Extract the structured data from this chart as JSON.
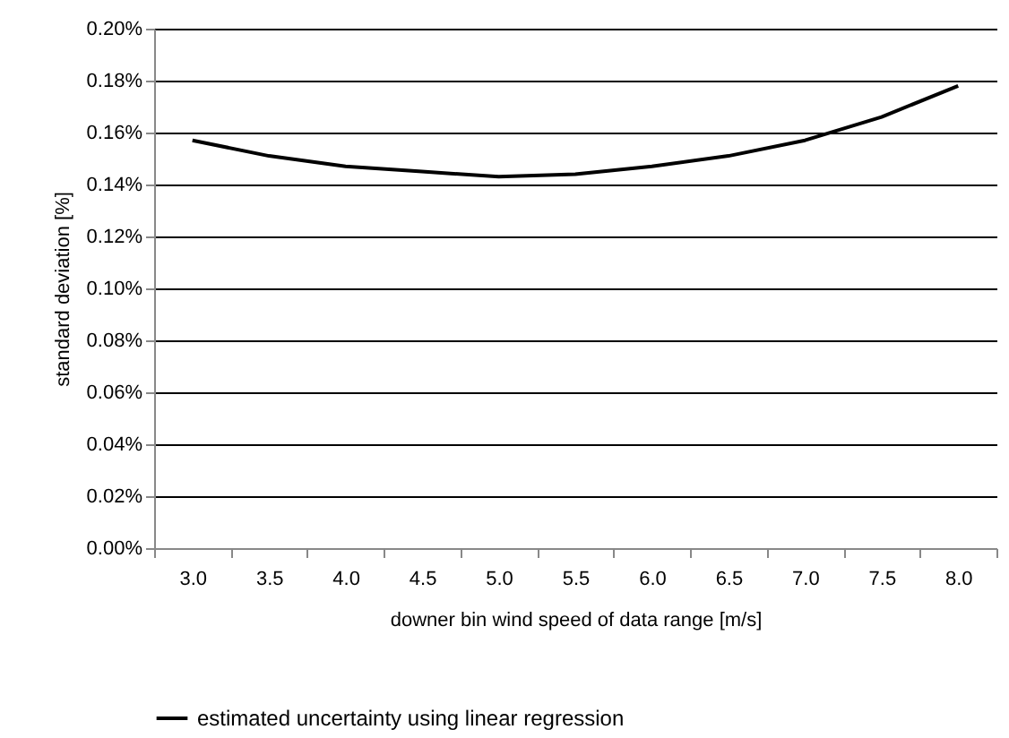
{
  "chart_data": {
    "type": "line",
    "xlabel": "downer bin wind speed of data range [m/s]",
    "ylabel": "standard deviation [%]",
    "categories": [
      "3.0",
      "3.5",
      "4.0",
      "4.5",
      "5.0",
      "5.5",
      "6.0",
      "6.5",
      "7.0",
      "7.5",
      "8.0"
    ],
    "series": [
      {
        "name": "estimated uncertainty using linear regression",
        "color": "#000000",
        "values": [
          0.157,
          0.151,
          0.147,
          0.145,
          0.143,
          0.144,
          0.147,
          0.151,
          0.157,
          0.166,
          0.178
        ]
      }
    ],
    "ylim": [
      0,
      0.2
    ],
    "yticks": [
      {
        "value": 0,
        "label": "0.00%"
      },
      {
        "value": 0.02,
        "label": "0.02%"
      },
      {
        "value": 0.04,
        "label": "0.04%"
      },
      {
        "value": 0.06,
        "label": "0.06%"
      },
      {
        "value": 0.08,
        "label": "0.08%"
      },
      {
        "value": 0.1,
        "label": "0.10%"
      },
      {
        "value": 0.12,
        "label": "0.12%"
      },
      {
        "value": 0.14,
        "label": "0.14%"
      },
      {
        "value": 0.16,
        "label": "0.16%"
      },
      {
        "value": 0.18,
        "label": "0.18%"
      },
      {
        "value": 0.2,
        "label": "0.20%"
      }
    ],
    "grid": "y",
    "legend": "bottom",
    "marker": "none",
    "line_style": "solid"
  }
}
